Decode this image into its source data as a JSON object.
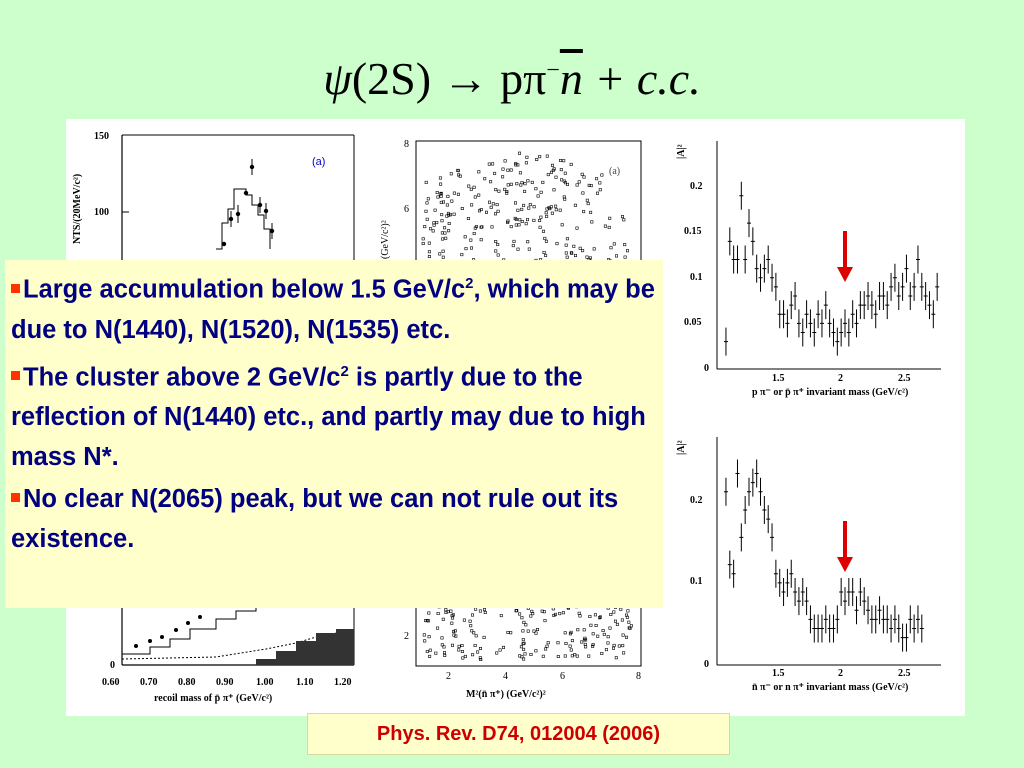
{
  "slide": {
    "title": {
      "psi": "ψ",
      "mid": "(2S) → pπ",
      "minus": "−",
      "nbar": "n",
      "tail": " + c.c."
    },
    "bullets": [
      {
        "text": "Large accumulation below 1.5 GeV/c",
        "sup": "2",
        "tail": ", which may be due to N(1440), N(1520), N(1535) etc."
      },
      {
        "text": "The cluster above 2 GeV/c",
        "sup": "2",
        "tail": " is partly due to the reflection of N(1440) etc., and partly may due to high mass N*."
      },
      {
        "text": "No clear N(2065) peak, but we can not rule out its existence.",
        "sup": "",
        "tail": ""
      }
    ],
    "reference": "Phys. Rev. D74, 012004 (2006)",
    "colors": {
      "background": "#ccffcc",
      "callout": "#ffffcc",
      "bullet_text": "#000080",
      "bullet_marker": "#ff3300",
      "reference_text": "#cc0000",
      "arrow": "#dd0000"
    }
  },
  "figure": {
    "hist": {
      "label": "(a)",
      "ylabel": "NTS/(20MeV/c²)",
      "xlabel": "recoil mass of p̄ π⁺ (GeV/c²)",
      "yticks": [
        "150",
        "100",
        "0"
      ],
      "xticks": [
        "0.60",
        "0.70",
        "0.80",
        "0.90",
        "1.00",
        "1.10",
        "1.20"
      ]
    },
    "dalitz": {
      "label": "(a)",
      "ylabel": "(GeV/c²)²",
      "xlabel": "M²(n̄ π⁺) (GeV/c²)²",
      "yticks": [
        "8",
        "6",
        "2"
      ],
      "xticks": [
        "2",
        "4",
        "6",
        "8"
      ]
    },
    "amp_top": {
      "ylabel": "|A|²",
      "xlabel": "p π⁻ or p̄ π⁺ invariant mass (GeV/c²)",
      "yticks": [
        "0.2",
        "0.15",
        "0.1",
        "0.05",
        "0"
      ],
      "xticks": [
        "1.5",
        "2",
        "2.5"
      ]
    },
    "amp_bottom": {
      "ylabel": "|A|²",
      "xlabel": "n̄ π⁻ or n π⁺ invariant mass (GeV/c²)",
      "yticks": [
        "0.2",
        "0.1",
        "0"
      ],
      "xticks": [
        "1.5",
        "2",
        "2.5"
      ]
    }
  },
  "chart_data": [
    {
      "type": "scatter",
      "title": "",
      "xlabel": "p π⁻ or p̄ π⁺ invariant mass (GeV/c²)",
      "ylabel": "|A|²",
      "xlim": [
        1.05,
        2.8
      ],
      "ylim": [
        0,
        0.25
      ],
      "x": [
        1.12,
        1.15,
        1.18,
        1.21,
        1.24,
        1.27,
        1.3,
        1.33,
        1.36,
        1.39,
        1.42,
        1.45,
        1.48,
        1.51,
        1.54,
        1.57,
        1.6,
        1.63,
        1.66,
        1.69,
        1.72,
        1.75,
        1.78,
        1.81,
        1.84,
        1.87,
        1.9,
        1.93,
        1.96,
        1.99,
        2.02,
        2.05,
        2.08,
        2.11,
        2.14,
        2.17,
        2.2,
        2.23,
        2.26,
        2.29,
        2.32,
        2.35,
        2.38,
        2.41,
        2.44,
        2.47,
        2.5,
        2.53,
        2.56,
        2.59,
        2.62,
        2.65,
        2.68,
        2.71,
        2.74,
        2.77
      ],
      "values": [
        0.03,
        0.14,
        0.12,
        0.12,
        0.19,
        0.12,
        0.16,
        0.14,
        0.11,
        0.1,
        0.11,
        0.12,
        0.1,
        0.09,
        0.06,
        0.06,
        0.05,
        0.07,
        0.08,
        0.05,
        0.04,
        0.06,
        0.05,
        0.04,
        0.06,
        0.05,
        0.07,
        0.05,
        0.04,
        0.03,
        0.04,
        0.05,
        0.04,
        0.06,
        0.05,
        0.07,
        0.07,
        0.08,
        0.07,
        0.06,
        0.08,
        0.08,
        0.07,
        0.09,
        0.1,
        0.08,
        0.09,
        0.11,
        0.08,
        0.09,
        0.12,
        0.09,
        0.08,
        0.07,
        0.06,
        0.09
      ]
    },
    {
      "type": "scatter",
      "title": "",
      "xlabel": "n̄ π⁻ or n π⁺ invariant mass (GeV/c²)",
      "ylabel": "|A|²",
      "xlim": [
        1.05,
        2.8
      ],
      "ylim": [
        0,
        0.25
      ],
      "x": [
        1.12,
        1.15,
        1.18,
        1.21,
        1.24,
        1.27,
        1.3,
        1.33,
        1.36,
        1.39,
        1.42,
        1.45,
        1.48,
        1.51,
        1.54,
        1.57,
        1.6,
        1.63,
        1.66,
        1.69,
        1.72,
        1.75,
        1.78,
        1.81,
        1.84,
        1.87,
        1.9,
        1.93,
        1.96,
        1.99,
        2.02,
        2.05,
        2.08,
        2.11,
        2.14,
        2.17,
        2.2,
        2.23,
        2.26,
        2.29,
        2.32,
        2.35,
        2.38,
        2.41,
        2.44,
        2.47,
        2.5,
        2.53,
        2.56,
        2.59,
        2.62,
        2.65
      ],
      "values": [
        0.19,
        0.11,
        0.1,
        0.21,
        0.14,
        0.17,
        0.19,
        0.2,
        0.21,
        0.19,
        0.17,
        0.16,
        0.14,
        0.1,
        0.09,
        0.08,
        0.09,
        0.1,
        0.08,
        0.07,
        0.08,
        0.07,
        0.05,
        0.04,
        0.04,
        0.04,
        0.05,
        0.04,
        0.04,
        0.05,
        0.08,
        0.07,
        0.08,
        0.08,
        0.06,
        0.08,
        0.07,
        0.06,
        0.05,
        0.05,
        0.06,
        0.05,
        0.05,
        0.04,
        0.05,
        0.04,
        0.03,
        0.03,
        0.05,
        0.04,
        0.05,
        0.04
      ]
    }
  ]
}
